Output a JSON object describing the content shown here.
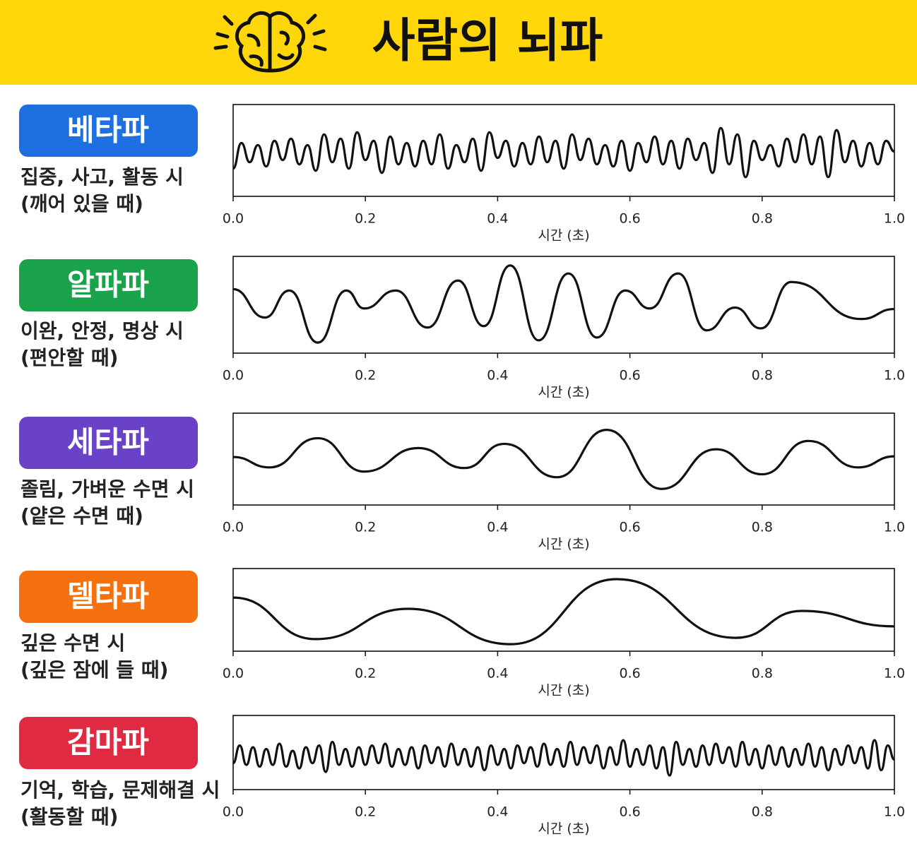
{
  "header": {
    "title": "사람의 뇌파"
  },
  "chart_data": [
    {
      "type": "line",
      "title": "베타파",
      "badge_color": "#1e6fe0",
      "color": "#111111",
      "description": [
        "집중, 사고, 활동 시",
        "(깨어 있을 때)"
      ],
      "xlabel": "시간 (초)",
      "xlim": [
        0,
        1
      ],
      "ylim": [
        -2.1,
        2.2
      ],
      "xticks": [
        {
          "value": 0,
          "label": "0.0"
        },
        0.2,
        0.4,
        0.6,
        0.8,
        {
          "value": 1,
          "label": "1.0"
        }
      ],
      "x": [
        0,
        0.0125,
        0.025,
        0.0375,
        0.05,
        0.0625,
        0.075,
        0.0875,
        0.1,
        0.1125,
        0.125,
        0.1375,
        0.15,
        0.1625,
        0.175,
        0.1875,
        0.2,
        0.2125,
        0.225,
        0.2375,
        0.25,
        0.2625,
        0.275,
        0.2875,
        0.3,
        0.3125,
        0.325,
        0.3375,
        0.35,
        0.3625,
        0.375,
        0.3875,
        0.4,
        0.4125,
        0.425,
        0.4375,
        0.45,
        0.4625,
        0.475,
        0.4875,
        0.5,
        0.5125,
        0.525,
        0.5375,
        0.55,
        0.5625,
        0.575,
        0.5875,
        0.6,
        0.6125,
        0.625,
        0.6375,
        0.65,
        0.6625,
        0.675,
        0.6875,
        0.7,
        0.7125,
        0.725,
        0.7375,
        0.75,
        0.7625,
        0.775,
        0.7875,
        0.8,
        0.8125,
        0.825,
        0.8375,
        0.85,
        0.8625,
        0.875,
        0.8875,
        0.9,
        0.9125,
        0.925,
        0.9375,
        0.95,
        0.9625,
        0.975,
        0.9875,
        1.0
      ],
      "values": [
        -0.8,
        0.4,
        -0.5,
        0.3,
        -0.7,
        0.5,
        -0.4,
        0.6,
        -0.6,
        0.3,
        -0.9,
        0.8,
        -0.5,
        0.6,
        -0.8,
        0.9,
        -0.4,
        0.5,
        -1.0,
        0.7,
        -0.6,
        0.4,
        -0.7,
        0.5,
        -0.6,
        0.8,
        -0.8,
        0.3,
        -0.5,
        0.6,
        -0.9,
        0.9,
        -0.3,
        0.5,
        -0.7,
        0.4,
        -0.6,
        0.7,
        -0.5,
        0.5,
        -0.8,
        0.8,
        -0.4,
        0.6,
        -0.6,
        0.3,
        -0.7,
        0.5,
        -0.9,
        0.4,
        -0.5,
        0.7,
        -0.6,
        0.5,
        -0.8,
        0.6,
        -0.4,
        0.4,
        -1.0,
        1.1,
        -0.6,
        0.8,
        -1.2,
        0.5,
        -0.4,
        0.3,
        -0.7,
        0.6,
        -0.5,
        0.8,
        -0.6,
        0.7,
        -1.2,
        1.0,
        -0.5,
        0.5,
        -0.7,
        0.4,
        -0.6,
        0.5,
        0.0
      ]
    },
    {
      "type": "line",
      "title": "알파파",
      "badge_color": "#1aa34a",
      "color": "#111111",
      "description": [
        "이완, 안정, 명상 시",
        "(편안할 때)"
      ],
      "xlabel": "시간 (초)",
      "xlim": [
        0,
        1
      ],
      "ylim": [
        -1.7,
        1.7
      ],
      "xticks": [
        {
          "value": 0,
          "label": "0.0"
        },
        0.2,
        0.4,
        0.6,
        0.8,
        {
          "value": 1,
          "label": "1.0"
        }
      ],
      "x": [
        0,
        0.048,
        0.085,
        0.128,
        0.171,
        0.198,
        0.246,
        0.294,
        0.34,
        0.379,
        0.419,
        0.462,
        0.507,
        0.55,
        0.593,
        0.63,
        0.673,
        0.716,
        0.759,
        0.798,
        0.844,
        0.95,
        1.0
      ],
      "values": [
        0.55,
        -0.45,
        0.5,
        -1.33,
        0.5,
        -0.13,
        0.5,
        -0.8,
        0.85,
        -0.75,
        1.38,
        -1.25,
        1.1,
        -1.15,
        0.5,
        -0.13,
        1.1,
        -0.9,
        -0.1,
        -0.83,
        0.8,
        -0.5,
        -0.15
      ]
    },
    {
      "type": "line",
      "title": "세타파",
      "badge_color": "#6a42c8",
      "color": "#111111",
      "description": [
        "졸림, 가벼운 수면 시",
        "(얕은 수면 때)"
      ],
      "xlabel": "시간 (초)",
      "xlim": [
        0,
        1
      ],
      "ylim": [
        -2.2,
        2.2
      ],
      "xticks": [
        {
          "value": 0,
          "label": "0.0"
        },
        0.2,
        0.4,
        0.6,
        0.8,
        {
          "value": 1,
          "label": "1.0"
        }
      ],
      "x": [
        0,
        0.055,
        0.128,
        0.198,
        0.28,
        0.35,
        0.41,
        0.49,
        0.565,
        0.648,
        0.73,
        0.8,
        0.87,
        0.945,
        1.0
      ],
      "values": [
        0.1,
        -0.4,
        1.0,
        -0.6,
        0.53,
        -0.43,
        0.73,
        -0.87,
        1.4,
        -1.43,
        0.47,
        -0.73,
        0.87,
        -0.4,
        0.13
      ]
    },
    {
      "type": "line",
      "title": "델타파",
      "badge_color": "#f5700f",
      "color": "#111111",
      "description": [
        "깊은 수면 시",
        "(깊은 잠에 들 때)"
      ],
      "xlabel": "시간 (초)",
      "xlim": [
        0,
        1
      ],
      "ylim": [
        -1.9,
        2.0
      ],
      "xticks": [
        {
          "value": 0,
          "label": "0.0"
        },
        0.2,
        0.4,
        0.6,
        0.8,
        {
          "value": 1,
          "label": "1.0"
        }
      ],
      "x": [
        0,
        0.125,
        0.265,
        0.42,
        0.58,
        0.76,
        0.86,
        1.0
      ],
      "values": [
        0.63,
        -1.33,
        0.1,
        -1.57,
        1.5,
        -1.27,
        0,
        -0.73
      ]
    },
    {
      "type": "line",
      "title": "감마파",
      "badge_color": "#e02a42",
      "color": "#111111",
      "description": [
        "기억, 학습, 문제해결 시",
        "(활동할 때)"
      ],
      "xlabel": "시간 (초)",
      "xlim": [
        0,
        1
      ],
      "ylim": [
        -1.9,
        2.3
      ],
      "xticks": [
        {
          "value": 0,
          "label": "0.0"
        },
        0.2,
        0.4,
        0.6,
        0.8,
        {
          "value": 1,
          "label": "1.0"
        }
      ],
      "x": [
        0,
        0.01,
        0.02,
        0.03,
        0.04,
        0.05,
        0.06,
        0.07,
        0.08,
        0.09,
        0.1,
        0.11,
        0.12,
        0.13,
        0.14,
        0.15,
        0.16,
        0.17,
        0.18,
        0.19,
        0.2,
        0.21,
        0.22,
        0.23,
        0.24,
        0.25,
        0.26,
        0.27,
        0.28,
        0.29,
        0.3,
        0.31,
        0.32,
        0.33,
        0.34,
        0.35,
        0.36,
        0.37,
        0.38,
        0.39,
        0.4,
        0.41,
        0.42,
        0.43,
        0.44,
        0.45,
        0.46,
        0.47,
        0.48,
        0.49,
        0.5,
        0.51,
        0.52,
        0.53,
        0.54,
        0.55,
        0.56,
        0.57,
        0.58,
        0.59,
        0.6,
        0.61,
        0.62,
        0.63,
        0.64,
        0.65,
        0.66,
        0.67,
        0.68,
        0.69,
        0.7,
        0.71,
        0.72,
        0.73,
        0.74,
        0.75,
        0.76,
        0.77,
        0.78,
        0.79,
        0.8,
        0.81,
        0.82,
        0.83,
        0.84,
        0.85,
        0.86,
        0.87,
        0.88,
        0.89,
        0.9,
        0.91,
        0.92,
        0.93,
        0.94,
        0.95,
        0.96,
        0.97,
        0.98,
        0.99,
        1.0
      ],
      "values": [
        -0.4,
        0.6,
        -0.5,
        0.5,
        -0.6,
        0.4,
        -0.5,
        0.7,
        -0.6,
        0.3,
        -0.7,
        0.5,
        -0.4,
        0.6,
        -0.9,
        0.8,
        -0.5,
        0.4,
        -0.6,
        0.5,
        -0.5,
        0.6,
        -0.4,
        0.7,
        -0.6,
        0.4,
        -0.5,
        0.5,
        -0.7,
        0.6,
        -0.4,
        0.5,
        -0.6,
        0.7,
        -0.5,
        0.4,
        -0.6,
        0.5,
        -0.8,
        0.6,
        -0.5,
        0.4,
        -0.7,
        0.6,
        -0.4,
        0.5,
        -0.6,
        0.7,
        -0.5,
        0.4,
        -0.6,
        0.8,
        -0.5,
        0.5,
        -0.4,
        0.6,
        -0.7,
        0.5,
        -0.5,
        0.9,
        -0.6,
        0.4,
        -0.5,
        0.6,
        -0.7,
        0.5,
        -1.1,
        0.8,
        -0.5,
        0.4,
        -0.6,
        0.6,
        -0.5,
        0.7,
        -0.4,
        0.5,
        -0.6,
        0.8,
        -0.5,
        0.4,
        -0.7,
        0.6,
        -0.5,
        0.5,
        -0.6,
        0.4,
        -0.5,
        0.7,
        -0.6,
        0.5,
        -0.8,
        0.4,
        -0.5,
        0.6,
        -0.4,
        0.5,
        -0.7,
        0.9,
        -0.8,
        0.6,
        -0.2
      ]
    }
  ]
}
